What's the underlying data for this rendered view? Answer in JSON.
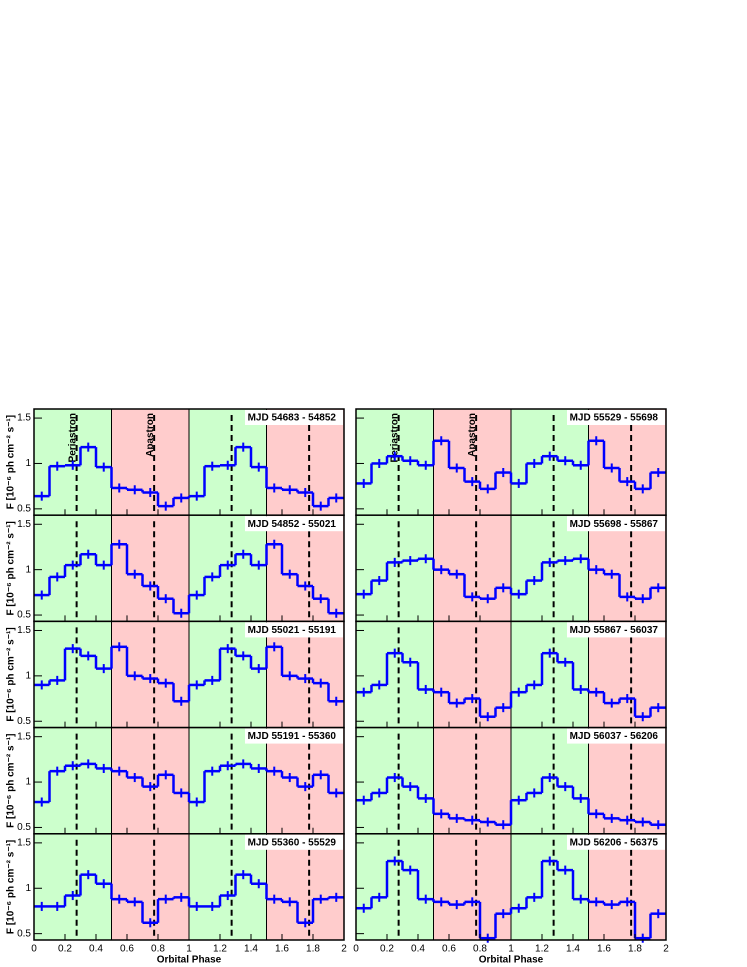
{
  "figure": {
    "xlabel": "Orbital Phase",
    "ylabel": "F [10⁻⁶ ph cm⁻² s⁻¹]",
    "xlim": [
      0,
      2
    ],
    "xticks": [
      0,
      0.2,
      0.4,
      0.6,
      0.8,
      1,
      1.2,
      1.4,
      1.6,
      1.8,
      2
    ],
    "bins": [
      0,
      0.1,
      0.2,
      0.3,
      0.4,
      0.5,
      0.6,
      0.7,
      0.8,
      0.9,
      1,
      1.1,
      1.2,
      1.3,
      1.4,
      1.5,
      1.6,
      1.7,
      1.8,
      1.9,
      2
    ],
    "regions": [
      {
        "from": 0,
        "to": 0.5,
        "color": "#ccffcc"
      },
      {
        "from": 0.5,
        "to": 1,
        "color": "#ffcccc"
      },
      {
        "from": 1,
        "to": 1.5,
        "color": "#ccffcc"
      },
      {
        "from": 1.5,
        "to": 2,
        "color": "#ffcccc"
      }
    ],
    "vlines": [
      0.275,
      0.775,
      1.275,
      1.775
    ],
    "annotations": [
      {
        "text": "Periastron",
        "x": 0.275
      },
      {
        "text": "Apastron",
        "x": 0.775
      }
    ]
  },
  "chart_data": [
    {
      "type": "step",
      "title": "MJD 54683 - 54852",
      "color": "#0000ff",
      "error": 0.05,
      "ylim": [
        0.43,
        1.6
      ],
      "yticks": [
        0.5,
        1,
        1.5
      ],
      "values": [
        0.64,
        0.97,
        0.98,
        1.18,
        0.96,
        0.73,
        0.71,
        0.68,
        0.53,
        0.62,
        0.64,
        0.97,
        0.98,
        1.18,
        0.96,
        0.73,
        0.71,
        0.68,
        0.53,
        0.62
      ]
    },
    {
      "type": "step",
      "title": "MJD 54852 - 55021",
      "color": "#0000ff",
      "error": 0.05,
      "ylim": [
        0.43,
        1.6
      ],
      "yticks": [
        0.5,
        1,
        1.5
      ],
      "values": [
        0.72,
        0.92,
        1.05,
        1.17,
        1.05,
        1.28,
        0.95,
        0.82,
        0.68,
        0.52,
        0.72,
        0.92,
        1.05,
        1.17,
        1.05,
        1.28,
        0.95,
        0.82,
        0.68,
        0.52
      ]
    },
    {
      "type": "step",
      "title": "MJD 55021 - 55191",
      "color": "#0000ff",
      "error": 0.05,
      "ylim": [
        0.43,
        1.6
      ],
      "yticks": [
        0.5,
        1,
        1.5
      ],
      "values": [
        0.9,
        0.95,
        1.3,
        1.22,
        1.08,
        1.32,
        1.0,
        0.97,
        0.92,
        0.72,
        0.9,
        0.95,
        1.3,
        1.22,
        1.08,
        1.32,
        1.0,
        0.97,
        0.92,
        0.72
      ]
    },
    {
      "type": "step",
      "title": "MJD 55191 - 55360",
      "color": "#0000ff",
      "error": 0.05,
      "ylim": [
        0.43,
        1.6
      ],
      "yticks": [
        0.5,
        1,
        1.5
      ],
      "values": [
        0.78,
        1.12,
        1.18,
        1.2,
        1.15,
        1.12,
        1.05,
        0.95,
        1.08,
        0.88,
        0.78,
        1.12,
        1.18,
        1.2,
        1.15,
        1.12,
        1.05,
        0.95,
        1.08,
        0.88
      ]
    },
    {
      "type": "step",
      "title": "MJD 55360 - 55529",
      "color": "#0000ff",
      "error": 0.05,
      "ylim": [
        0.43,
        1.6
      ],
      "yticks": [
        0.5,
        1,
        1.5
      ],
      "values": [
        0.8,
        0.8,
        0.92,
        1.15,
        1.05,
        0.88,
        0.85,
        0.62,
        0.88,
        0.9,
        0.8,
        0.8,
        0.92,
        1.15,
        1.05,
        0.88,
        0.85,
        0.62,
        0.88,
        0.9
      ]
    },
    {
      "type": "step",
      "title": "MJD 55529 - 55698",
      "color": "#0000ff",
      "error": 0.05,
      "ylim": [
        0.43,
        1.6
      ],
      "yticks": [
        0.5,
        1,
        1.5
      ],
      "values": [
        0.78,
        1.0,
        1.08,
        1.03,
        0.98,
        1.25,
        0.95,
        0.8,
        0.72,
        0.9,
        0.78,
        1.0,
        1.08,
        1.03,
        0.98,
        1.25,
        0.95,
        0.8,
        0.72,
        0.9
      ]
    },
    {
      "type": "step",
      "title": "MJD 55698 - 55867",
      "color": "#0000ff",
      "error": 0.05,
      "ylim": [
        0.43,
        1.6
      ],
      "yticks": [
        0.5,
        1,
        1.5
      ],
      "values": [
        0.73,
        0.88,
        1.08,
        1.1,
        1.12,
        1.0,
        0.95,
        0.7,
        0.68,
        0.8,
        0.73,
        0.88,
        1.08,
        1.1,
        1.12,
        1.0,
        0.95,
        0.7,
        0.68,
        0.8
      ]
    },
    {
      "type": "step",
      "title": "MJD 55867 - 56037",
      "color": "#0000ff",
      "error": 0.05,
      "ylim": [
        0.43,
        1.6
      ],
      "yticks": [
        0.5,
        1,
        1.5
      ],
      "values": [
        0.82,
        0.9,
        1.25,
        1.15,
        0.85,
        0.82,
        0.7,
        0.75,
        0.55,
        0.65,
        0.82,
        0.9,
        1.25,
        1.15,
        0.85,
        0.82,
        0.7,
        0.75,
        0.55,
        0.65
      ]
    },
    {
      "type": "step",
      "title": "MJD 56037 - 56206",
      "color": "#0000ff",
      "error": 0.05,
      "ylim": [
        0.43,
        1.6
      ],
      "yticks": [
        0.5,
        1,
        1.5
      ],
      "values": [
        0.8,
        0.88,
        1.05,
        0.95,
        0.82,
        0.65,
        0.6,
        0.58,
        0.56,
        0.53,
        0.8,
        0.88,
        1.05,
        0.95,
        0.82,
        0.65,
        0.6,
        0.58,
        0.56,
        0.53
      ]
    },
    {
      "type": "step",
      "title": "MJD 56206 - 56375",
      "color": "#0000ff",
      "error": 0.05,
      "ylim": [
        0.43,
        1.6
      ],
      "yticks": [
        0.5,
        1,
        1.5
      ],
      "values": [
        0.78,
        0.9,
        1.3,
        1.2,
        0.88,
        0.85,
        0.82,
        0.85,
        0.45,
        0.72,
        0.78,
        0.9,
        1.3,
        1.2,
        0.88,
        0.85,
        0.82,
        0.85,
        0.45,
        0.72
      ]
    }
  ]
}
